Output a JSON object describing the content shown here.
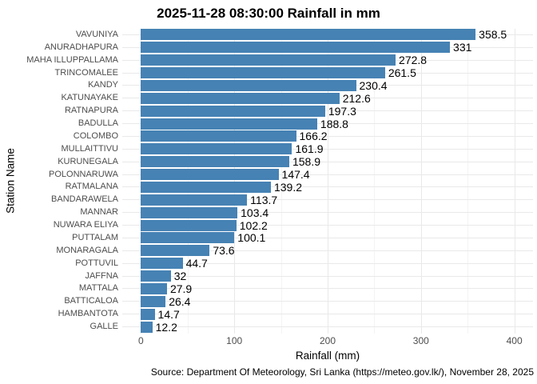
{
  "figure": {
    "caption": "Source: Department Of Meteorology, Sri Lanka (https://meteo.gov.lk/), November 28, 2025"
  },
  "chart_data": {
    "type": "bar",
    "orientation": "horizontal",
    "title": "2025-11-28 08:30:00 Rainfall in mm",
    "xlabel": "Rainfall (mm)",
    "ylabel": "Station Name",
    "categories": [
      "VAVUNIYA",
      "ANURADHAPURA",
      "MAHA ILLUPPALLAMA",
      "TRINCOMALEE",
      "KANDY",
      "KATUNAYAKE",
      "RATNAPURA",
      "BADULLA",
      "COLOMBO",
      "MULLAITTIVU",
      "KURUNEGALA",
      "POLONNARUWA",
      "RATMALANA",
      "BANDARAWELA",
      "MANNAR",
      "NUWARA ELIYA",
      "PUTTALAM",
      "MONARAGALA",
      "POTTUVIL",
      "JAFFNA",
      "MATTALA",
      "BATTICALOA",
      "HAMBANTOTA",
      "GALLE"
    ],
    "values": [
      358.5,
      331,
      272.8,
      261.5,
      230.4,
      212.6,
      197.3,
      188.8,
      166.2,
      161.9,
      158.9,
      147.4,
      139.2,
      113.7,
      103.4,
      102.2,
      100.1,
      73.6,
      44.7,
      32,
      27.9,
      26.4,
      14.7,
      12.2
    ],
    "value_labels": [
      "358.5",
      "331",
      "272.8",
      "261.5",
      "230.4",
      "212.6",
      "197.3",
      "188.8",
      "166.2",
      "161.9",
      "158.9",
      "147.4",
      "139.2",
      "113.7",
      "103.4",
      "102.2",
      "100.1",
      "73.6",
      "44.7",
      "32",
      "27.9",
      "26.4",
      "14.7",
      "12.2"
    ],
    "x_ticks": [
      0,
      100,
      200,
      300,
      400
    ],
    "x_minor_ticks": [
      50,
      150,
      250,
      350
    ],
    "x_tick_labels": [
      "0",
      "100",
      "200",
      "300",
      "400"
    ],
    "xlim": [
      -20,
      420
    ],
    "grid": "major+minor",
    "legend": "none",
    "colors": {
      "bar": "#4682B4",
      "grid_major": "#e9e9e9",
      "grid_minor": "#f4f4f4",
      "tick_text": "#4d4d4d",
      "text": "#000000",
      "background": "#ffffff"
    }
  }
}
